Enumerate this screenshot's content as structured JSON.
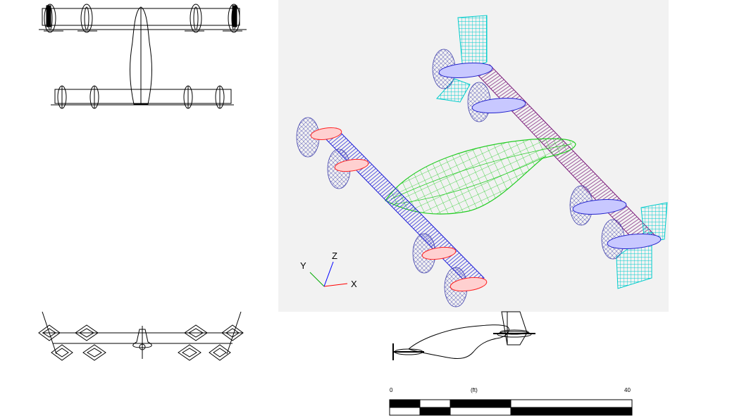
{
  "views": {
    "top": {
      "name": "top-view"
    },
    "iso": {
      "name": "isometric-view",
      "background": "#f2f2f2"
    },
    "front": {
      "name": "front-view"
    },
    "side": {
      "name": "side-view"
    }
  },
  "axes_triad": {
    "x_label": "X",
    "y_label": "Y",
    "z_label": "Z",
    "colors": {
      "x": "#ff0000",
      "y": "#00aa00",
      "z": "#0000ff"
    }
  },
  "scale": {
    "start_label": "0",
    "unit_label": "(ft)",
    "end_label": "40"
  },
  "colors": {
    "fuselage": "#22cc22",
    "front_wing": "#1a1ad8",
    "rear_wing": "#7a1a7a",
    "tail": "#00cccc",
    "nacelle_red": "#ff2222",
    "nacelle_blue": "#2222cc",
    "rotor": "#3a3aaa"
  }
}
